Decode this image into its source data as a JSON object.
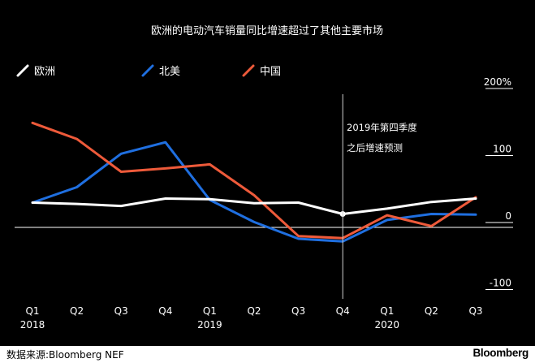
{
  "chart_data": {
    "type": "line",
    "title": "欧洲的电动汽车销量同比增速超过了其他主要市场",
    "categories": [
      "Q1",
      "Q2",
      "Q3",
      "Q4",
      "Q1",
      "Q2",
      "Q3",
      "Q4",
      "Q1",
      "Q2",
      "Q3"
    ],
    "years": [
      {
        "label": "2018",
        "index": 0
      },
      {
        "label": "2019",
        "index": 4
      },
      {
        "label": "2020",
        "index": 8
      }
    ],
    "y_ticks": [
      {
        "value": 200,
        "label": "200%"
      },
      {
        "value": 100,
        "label": "100"
      },
      {
        "value": 0,
        "label": "0"
      },
      {
        "value": -100,
        "label": "-100"
      }
    ],
    "ylim": [
      -100,
      200
    ],
    "series": [
      {
        "name": "欧洲",
        "color": "#ffffff",
        "values": [
          37,
          35,
          32,
          43,
          42,
          36,
          37,
          20,
          28,
          38,
          43
        ]
      },
      {
        "name": "北美",
        "color": "#1f6fe0",
        "values": [
          37,
          60,
          110,
          127,
          41,
          8,
          -17,
          -21,
          11,
          20,
          19
        ]
      },
      {
        "name": "中国",
        "color": "#ee5a3a",
        "values": [
          156,
          132,
          83,
          88,
          94,
          48,
          -13,
          -16,
          18,
          2,
          45
        ]
      }
    ],
    "annotation": {
      "index": 7,
      "line1": "2019年第四季度",
      "line2": "之后增速预测"
    },
    "grid": false,
    "legend_position": "top-left"
  },
  "source": "数据来源:Bloomberg NEF",
  "brand": "Bloomberg"
}
